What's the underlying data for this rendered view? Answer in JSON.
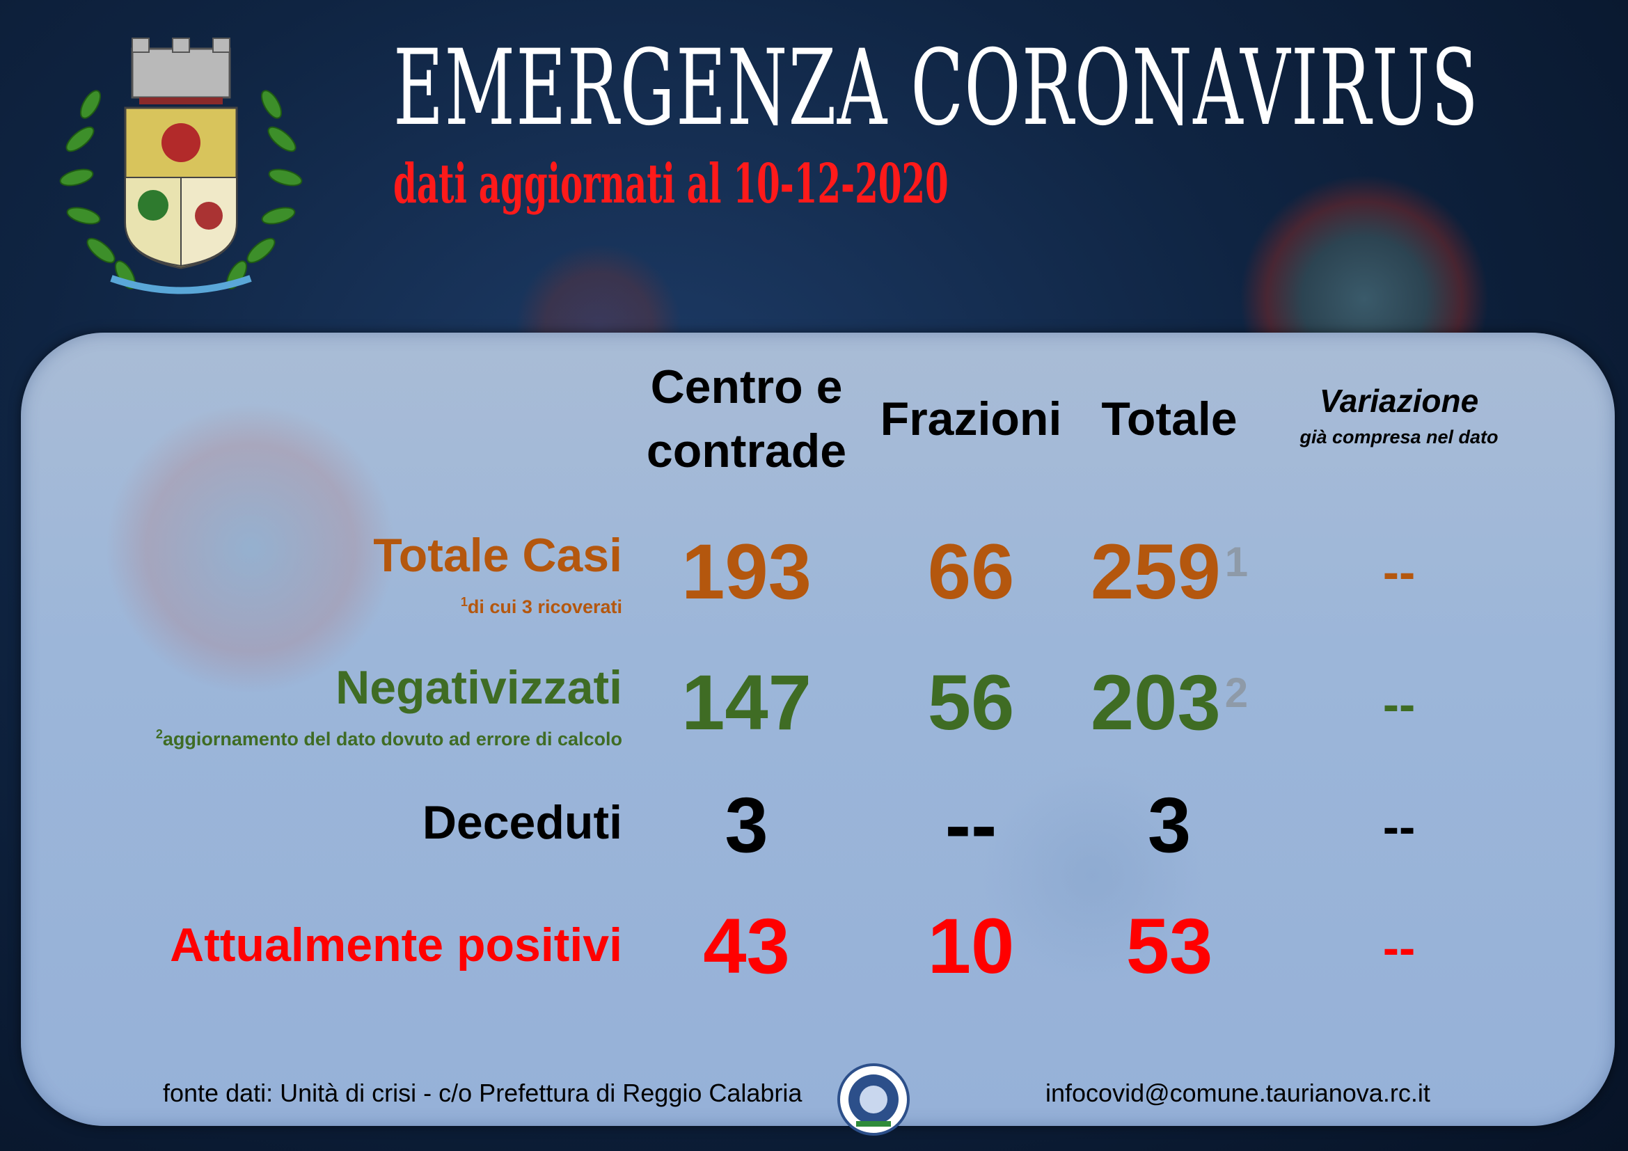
{
  "header": {
    "title": "EMERGENZA CORONAVIRUS",
    "subtitle": "dati aggiornati al 10-12-2020"
  },
  "columns": {
    "centro": "Centro e contrade",
    "centro_line1": "Centro e",
    "centro_line2": "contrade",
    "frazioni": "Frazioni",
    "totale": "Totale",
    "variazione": "Variazione",
    "variazione_note": "già compresa nel dato"
  },
  "rows": [
    {
      "label": "Totale Casi",
      "note_mark": "1",
      "note": "di cui 3 ricoverati",
      "centro": "193",
      "frazioni": "66",
      "totale": "259",
      "totale_mark": "1",
      "variazione": "--",
      "color": "#b4570e"
    },
    {
      "label": "Negativizzati",
      "note_mark": "2",
      "note": "aggiornamento del dato dovuto ad errore di calcolo",
      "centro": "147",
      "frazioni": "56",
      "totale": "203",
      "totale_mark": "2",
      "variazione": "--",
      "color": "#3f6c24"
    },
    {
      "label": "Deceduti",
      "centro": "3",
      "frazioni": "--",
      "totale": "3",
      "variazione": "--",
      "color": "#000000"
    },
    {
      "label": "Attualmente positivi",
      "centro": "43",
      "frazioni": "10",
      "totale": "53",
      "variazione": "--",
      "color": "#ff0000"
    }
  ],
  "footer": {
    "source": "fonte dati: Unità di crisi - c/o Prefettura di Reggio Calabria",
    "email": "infocovid@comune.taurianova.rc.it"
  },
  "icons": {
    "crest": "municipal-coat-of-arms-icon",
    "seal": "prefettura-seal-icon"
  },
  "colors": {
    "title": "#ffffff",
    "subtitle": "#ff1a1a",
    "background": "#0f2442",
    "panel": "#9cb6d9"
  }
}
